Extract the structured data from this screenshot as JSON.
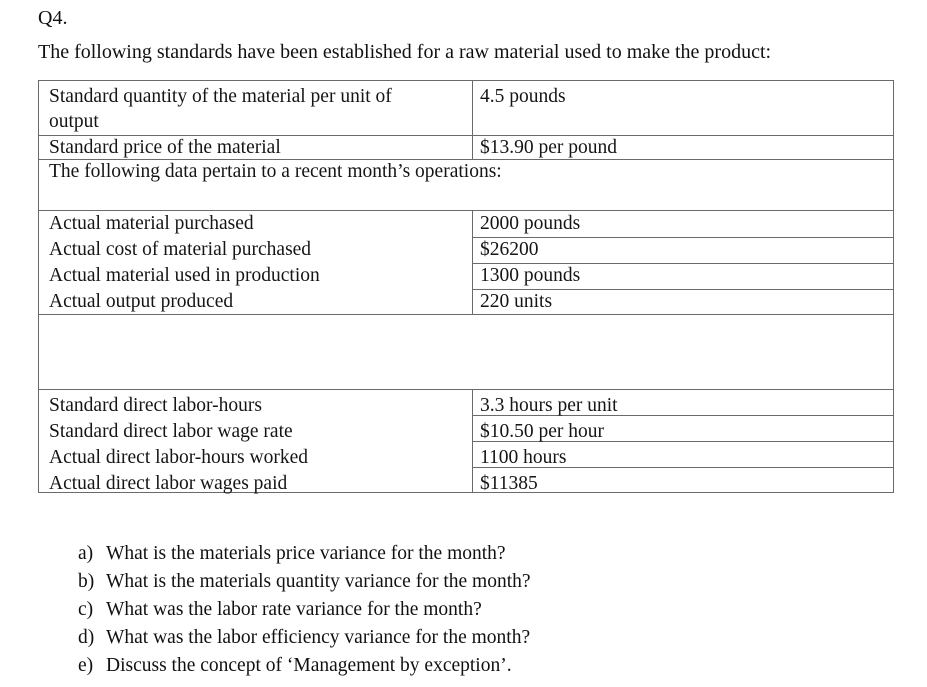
{
  "heading": "Q4.",
  "intro": "The following standards have been established for a raw material used to make the product:",
  "table": {
    "std_qty_label_line1": "Standard quantity of the material per unit of",
    "std_qty_label_line2": "output",
    "std_qty_value": "4.5 pounds",
    "std_price_label": "Standard price of the material",
    "std_price_value": "$13.90 per pound",
    "following_text": "The following data pertain to a recent month’s operations:",
    "material_rows": [
      {
        "label": "Actual material purchased",
        "value": "2000 pounds"
      },
      {
        "label": "Actual cost of material purchased",
        "value": "$26200"
      },
      {
        "label": "Actual material used in production",
        "value": "1300 pounds"
      },
      {
        "label": "Actual output produced",
        "value": "220 units"
      }
    ],
    "labor_rows": [
      {
        "label": "Standard direct labor-hours",
        "value": "3.3 hours per unit"
      },
      {
        "label": "Standard direct labor wage rate",
        "value": "$10.50 per hour"
      },
      {
        "label": "Actual direct labor-hours worked",
        "value": "1100 hours"
      },
      {
        "label": "Actual direct labor wages paid",
        "value": "$11385"
      }
    ]
  },
  "questions": [
    {
      "marker": "a)",
      "text": "What is the materials price variance for the month?"
    },
    {
      "marker": "b)",
      "text": "What is the materials quantity variance for the month?"
    },
    {
      "marker": "c)",
      "text": "What was the labor rate variance for the month?"
    },
    {
      "marker": "d)",
      "text": "What was the labor efficiency variance for the month?"
    },
    {
      "marker": "e)",
      "text": "Discuss the concept of ‘Management by exception’."
    }
  ]
}
